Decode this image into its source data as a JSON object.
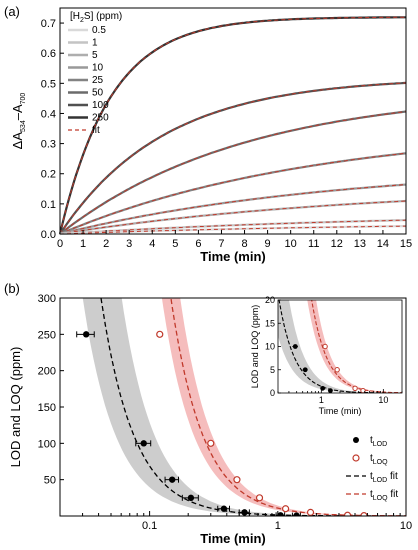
{
  "panel_a_label": "(a)",
  "panel_b_label": "(b)",
  "chart_data": [
    {
      "type": "line",
      "xlabel": "Time (min)",
      "ylabel_parts": [
        "ΔA",
        "534",
        "–A",
        "700"
      ],
      "xlim": [
        0,
        15
      ],
      "ylim": [
        0,
        0.75
      ],
      "xticks": [
        "0",
        "1",
        "2",
        "3",
        "4",
        "5",
        "6",
        "7",
        "8",
        "9",
        "10",
        "11",
        "12",
        "13",
        "14",
        "15"
      ],
      "yticks": [
        "0.0",
        "0.1",
        "0.2",
        "0.3",
        "0.4",
        "0.5",
        "0.6",
        "0.7"
      ],
      "legend_title_parts": [
        "[H",
        "2",
        "S] (ppm)"
      ],
      "legend_placement": "top-left",
      "series": [
        {
          "name": "0.5",
          "color": "#d9d9d9",
          "plateau": 0.04,
          "tau": 14
        },
        {
          "name": "1",
          "color": "#c4c4c4",
          "plateau": 0.07,
          "tau": 14
        },
        {
          "name": "5",
          "color": "#aeaeae",
          "plateau": 0.16,
          "tau": 13
        },
        {
          "name": "10",
          "color": "#999999",
          "plateau": 0.23,
          "tau": 12
        },
        {
          "name": "25",
          "color": "#838383",
          "plateau": 0.36,
          "tau": 11
        },
        {
          "name": "50",
          "color": "#6b6b6b",
          "plateau": 0.48,
          "tau": 8
        },
        {
          "name": "100",
          "color": "#505050",
          "plateau": 0.52,
          "tau": 4.5
        },
        {
          "name": "250",
          "color": "#333333",
          "plateau": 0.72,
          "tau": 2.2
        }
      ],
      "fit_label": "fit",
      "fit_color": "#c0392b"
    },
    {
      "type": "scatter",
      "xlabel": "Time (min)",
      "ylabel": "LOD and LOQ (ppm)",
      "xscale": "log",
      "xlim": [
        0.02,
        10
      ],
      "ylim": [
        0,
        300
      ],
      "xticks": [
        "0.1",
        "1",
        "10"
      ],
      "yticks": [
        "50",
        "100",
        "150",
        "200",
        "250",
        "300"
      ],
      "lod_points": [
        {
          "x": 0.032,
          "y": 250,
          "xerr": 0.005
        },
        {
          "x": 0.09,
          "y": 100,
          "xerr": 0.012
        },
        {
          "x": 0.15,
          "y": 50,
          "xerr": 0.018
        },
        {
          "x": 0.21,
          "y": 25,
          "xerr": 0.03
        },
        {
          "x": 0.38,
          "y": 10,
          "xerr": 0.04
        },
        {
          "x": 0.55,
          "y": 5,
          "xerr": 0.05
        },
        {
          "x": 1.05,
          "y": 1,
          "xerr": 0.08
        },
        {
          "x": 1.4,
          "y": 0.5,
          "xerr": 0.1
        }
      ],
      "loq_points": [
        {
          "x": 0.12,
          "y": 250
        },
        {
          "x": 0.3,
          "y": 100
        },
        {
          "x": 0.48,
          "y": 50
        },
        {
          "x": 0.72,
          "y": 25
        },
        {
          "x": 1.15,
          "y": 10
        },
        {
          "x": 1.8,
          "y": 5
        },
        {
          "x": 3.5,
          "y": 1
        },
        {
          "x": 4.7,
          "y": 0.5
        }
      ],
      "lod_color": "#000000",
      "loq_color": "#c0392b",
      "lod_band_color": "#c8c8c8",
      "loq_band_color": "#f4b6b6",
      "legend": [
        {
          "label_parts": [
            "t",
            "LOD"
          ],
          "kind": "filled-dot"
        },
        {
          "label_parts": [
            "t",
            "LOQ"
          ],
          "kind": "open-dot"
        },
        {
          "label_parts": [
            "t",
            "LOD",
            " fit"
          ],
          "kind": "black-dash"
        },
        {
          "label_parts": [
            "t",
            "LOQ",
            " fit"
          ],
          "kind": "red-dash"
        }
      ],
      "legend_placement": "bottom-right"
    },
    {
      "type": "scatter",
      "inset": true,
      "xlabel": "Time (min)",
      "ylabel": "LOD and LOQ (ppm)",
      "xscale": "log",
      "xlim": [
        0.2,
        20
      ],
      "ylim": [
        0,
        20
      ],
      "xticks": [
        "1",
        "10"
      ],
      "yticks": [
        "0",
        "5",
        "10",
        "15",
        "20"
      ]
    }
  ]
}
